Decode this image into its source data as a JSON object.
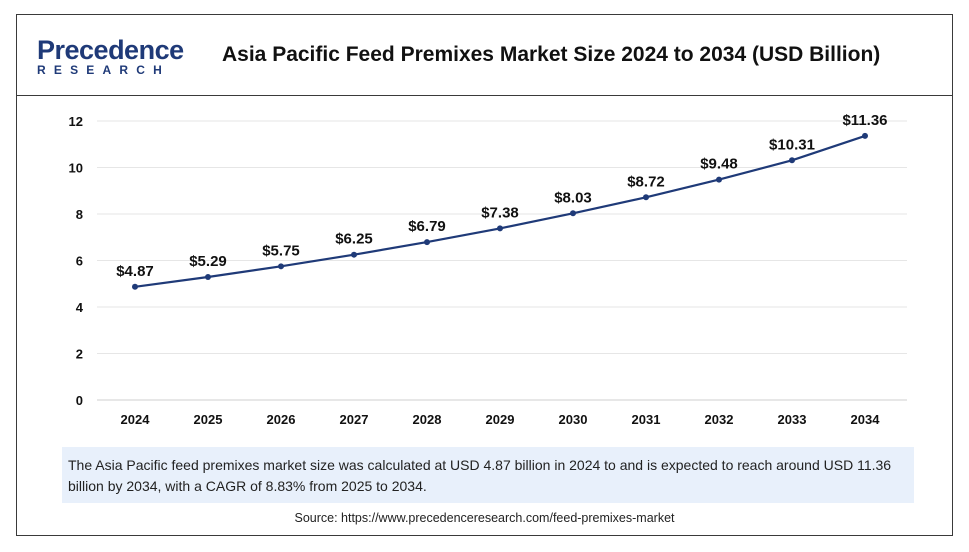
{
  "header": {
    "logo_top": "Precedence",
    "logo_bottom": "RESEARCH",
    "title": "Asia Pacific Feed Premixes Market Size 2024 to 2034 (USD Billion)"
  },
  "chart_data": {
    "type": "line",
    "categories": [
      "2024",
      "2025",
      "2026",
      "2027",
      "2028",
      "2029",
      "2030",
      "2031",
      "2032",
      "2033",
      "2034"
    ],
    "values": [
      4.87,
      5.29,
      5.75,
      6.25,
      6.79,
      7.38,
      8.03,
      8.72,
      9.48,
      10.31,
      11.36
    ],
    "data_labels": [
      "$4.87",
      "$5.29",
      "$5.75",
      "$6.25",
      "$6.79",
      "$7.38",
      "$8.03",
      "$8.72",
      "$9.48",
      "$10.31",
      "$11.36"
    ],
    "yticks": [
      0,
      2,
      4,
      6,
      8,
      10,
      12
    ],
    "ylim": [
      0,
      12
    ],
    "grid": true,
    "line_color": "#1f3a78",
    "xlabel": "",
    "ylabel": ""
  },
  "note": "The Asia Pacific feed premixes market size was calculated at USD 4.87 billion in 2024 to and is expected to reach around USD 11.36 billion by 2034, with a CAGR of 8.83% from 2025 to 2034.",
  "source": "Source: https://www.precedenceresearch.com/feed-premixes-market"
}
